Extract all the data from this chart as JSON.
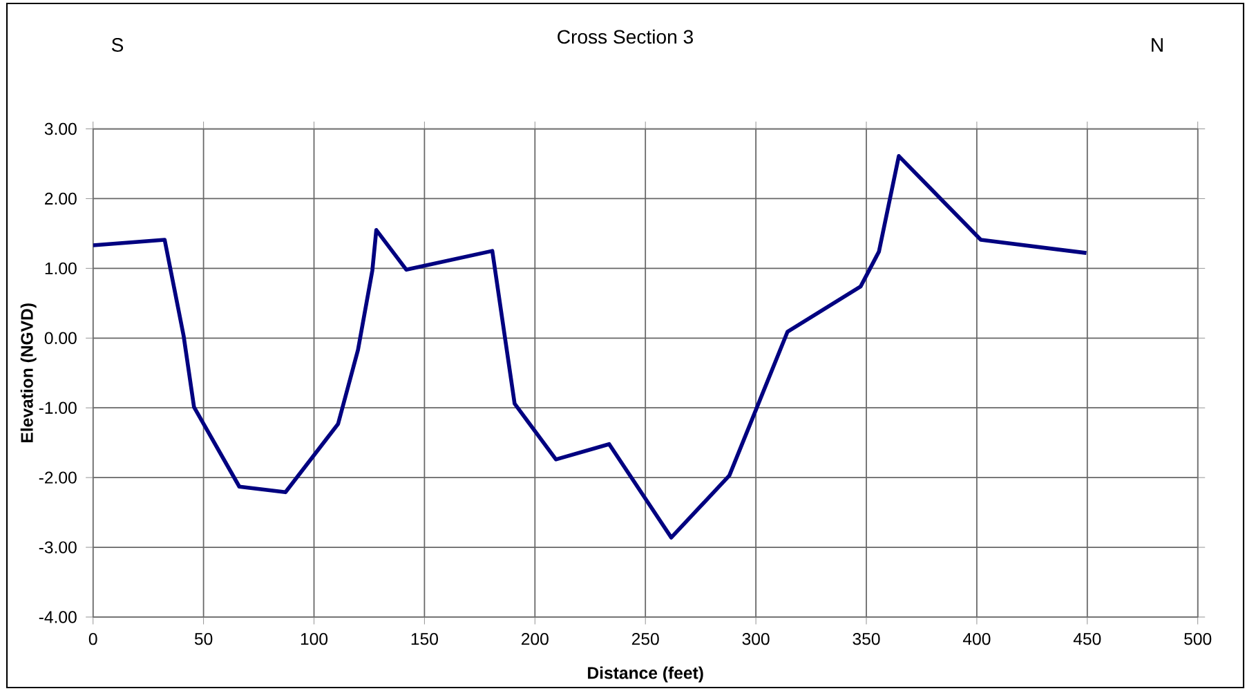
{
  "chart_data": {
    "type": "line",
    "title": "Cross Section 3",
    "xlabel": "Distance (feet)",
    "ylabel": "Elevation (NGVD)",
    "annotations": [
      "S",
      "N"
    ],
    "series": [
      {
        "color": "#000080",
        "x": [
          0,
          32.4,
          41,
          45.7,
          66.2,
          87.1,
          110.9,
          119.9,
          126.4,
          128.2,
          141.8,
          180.7,
          190.8,
          209.5,
          233.6,
          261.7,
          288,
          314.3,
          347.4,
          355.7,
          364.7,
          401.8,
          449.6
        ],
        "values": [
          1.33,
          1.41,
          0.03,
          -0.99,
          -2.13,
          -2.21,
          -1.23,
          -0.17,
          0.97,
          1.55,
          0.98,
          1.25,
          -0.94,
          -1.74,
          -1.52,
          -2.86,
          -1.97,
          0.09,
          0.74,
          1.24,
          2.61,
          1.41,
          1.22
        ]
      }
    ],
    "xlim": [
      0,
      500
    ],
    "xticks": [
      0,
      50,
      100,
      150,
      200,
      250,
      300,
      350,
      400,
      450,
      500
    ],
    "ylim": [
      -4,
      3
    ],
    "yticks": [
      {
        "value": -4,
        "label": "-4.00"
      },
      {
        "value": -3,
        "label": "-3.00"
      },
      {
        "value": -2,
        "label": "-2.00"
      },
      {
        "value": -1,
        "label": "-1.00"
      },
      {
        "value": 0,
        "label": "0.00"
      },
      {
        "value": 1,
        "label": "1.00"
      },
      {
        "value": 2,
        "label": "2.00"
      },
      {
        "value": 3,
        "label": "3.00"
      }
    ],
    "grid": true,
    "marker": "none",
    "line_style": "solid"
  }
}
